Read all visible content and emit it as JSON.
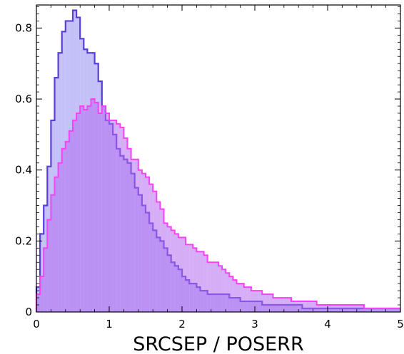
{
  "chart_data": {
    "type": "area",
    "xlabel": "SRCSEP / POSERR",
    "xlim": [
      0,
      5
    ],
    "ylim": [
      0,
      0.865
    ],
    "x_ticks": [
      "0",
      "1",
      "2",
      "3",
      "4",
      "5"
    ],
    "y_ticks": [
      "0",
      "0.2",
      "0.4",
      "0.6",
      "0.8"
    ],
    "bin_width": 0.05,
    "grid": false,
    "colors": {
      "series_1_line": "#5a3ed8",
      "series_1_fill": "#b9b6f7",
      "series_2_line": "#f542f5",
      "series_2_fill": "#b56cf0"
    },
    "series": [
      {
        "x_start": 0.0,
        "values": [
          0.07,
          0.22,
          0.3,
          0.41,
          0.54,
          0.66,
          0.73,
          0.79,
          0.82,
          0.82,
          0.85,
          0.83,
          0.77,
          0.74,
          0.73,
          0.73,
          0.7,
          0.65,
          0.58,
          0.54,
          0.53,
          0.5,
          0.46,
          0.44,
          0.43,
          0.42,
          0.39,
          0.35,
          0.33,
          0.3,
          0.28,
          0.25,
          0.23,
          0.21,
          0.2,
          0.18,
          0.16,
          0.14,
          0.13,
          0.12,
          0.1,
          0.09,
          0.08,
          0.08,
          0.07,
          0.06,
          0.06,
          0.05,
          0.05,
          0.05,
          0.05,
          0.05,
          0.05,
          0.04,
          0.04,
          0.04,
          0.03,
          0.03,
          0.03,
          0.03,
          0.03,
          0.03,
          0.02,
          0.02,
          0.02,
          0.02,
          0.02,
          0.02,
          0.02,
          0.02,
          0.02,
          0.02,
          0.02,
          0.01,
          0.01,
          0.01,
          0.01,
          0.01,
          0.01,
          0.01,
          0.01,
          0.01,
          0.01,
          0.01,
          0.01,
          0.01,
          0.01,
          0.01,
          0.01,
          0.01,
          0.01,
          0.01,
          0.01,
          0.01,
          0.01,
          0.01,
          0.01,
          0.01,
          0.01,
          0.01
        ]
      },
      {
        "x_start": 0.0,
        "values": [
          0.05,
          0.1,
          0.18,
          0.26,
          0.33,
          0.38,
          0.42,
          0.46,
          0.48,
          0.51,
          0.54,
          0.56,
          0.58,
          0.57,
          0.58,
          0.6,
          0.59,
          0.56,
          0.58,
          0.56,
          0.54,
          0.54,
          0.53,
          0.52,
          0.49,
          0.46,
          0.43,
          0.43,
          0.4,
          0.39,
          0.38,
          0.36,
          0.34,
          0.31,
          0.29,
          0.25,
          0.24,
          0.23,
          0.22,
          0.21,
          0.21,
          0.19,
          0.19,
          0.18,
          0.17,
          0.17,
          0.16,
          0.14,
          0.14,
          0.14,
          0.13,
          0.12,
          0.11,
          0.1,
          0.09,
          0.08,
          0.08,
          0.07,
          0.07,
          0.06,
          0.06,
          0.06,
          0.05,
          0.05,
          0.05,
          0.04,
          0.04,
          0.04,
          0.04,
          0.04,
          0.03,
          0.03,
          0.03,
          0.03,
          0.03,
          0.03,
          0.03,
          0.02,
          0.02,
          0.02,
          0.02,
          0.02,
          0.02,
          0.02,
          0.02,
          0.02,
          0.02,
          0.02,
          0.02,
          0.02,
          0.01,
          0.01,
          0.01,
          0.01,
          0.01,
          0.01,
          0.01,
          0.01,
          0.01,
          0.01
        ]
      }
    ]
  }
}
